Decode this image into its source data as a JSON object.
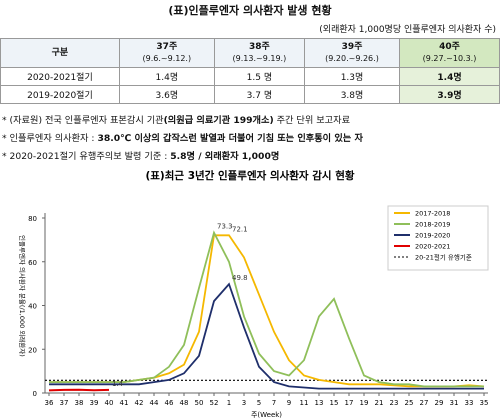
{
  "title": "(표)인플루엔자 의사환자 발생 현황",
  "unit_note": "(외래환자 1,000명당 인플루엔자 의사환자 수)",
  "table": {
    "corner": "구분",
    "header": [
      {
        "week": "37주",
        "range": "(9.6.~9.12.)"
      },
      {
        "week": "38주",
        "range": "(9.13.~9.19.)"
      },
      {
        "week": "39주",
        "range": "(9.20.~9.26.)"
      },
      {
        "week": "40주",
        "range": "(9.27.~10.3.)"
      }
    ],
    "rows": [
      [
        "2020-2021절기",
        "1.4명",
        "1.5 명",
        "1.3명",
        "1.4명"
      ],
      [
        "2019-2020절기",
        "3.6명",
        "3.7 명",
        "3.8명",
        "3.9명"
      ]
    ]
  },
  "notes": [
    [
      "* (자료원) 전국 인플루엔자 표본감시 기관",
      "(의원급 의료기관 199개소)",
      " 주간 단위 보고자료"
    ],
    [
      "* 인플루엔자 의사환자 : ",
      "38.0℃ 이상의 갑작스런 발열과 더불어 기침 또는 인후통이 있는 자"
    ],
    [
      "* 2020-2021절기 유행주의보 발령 기준 : ",
      "5.8명 / 외래환자 1,000명"
    ]
  ],
  "chart": {
    "type": "line",
    "title": "(표)최근 3년간 인플루엔자 의사환자 감시 현황",
    "y_label": "인플루엔자 의사환자 분율(/1,000 외래환자)",
    "x_label": "주(Week)",
    "categories": [
      36,
      37,
      38,
      39,
      40,
      41,
      42,
      44,
      46,
      48,
      50,
      52,
      1,
      3,
      5,
      7,
      9,
      11,
      13,
      15,
      17,
      19,
      21,
      23,
      25,
      27,
      29,
      31,
      33,
      35
    ],
    "ylim": [
      0,
      80
    ],
    "yticks": [
      0,
      20,
      40,
      60,
      80
    ],
    "series": [
      {
        "name": "2017-2018",
        "color": "#f5b800",
        "values": [
          5,
          5,
          5,
          5,
          5,
          5,
          6,
          7,
          9,
          13,
          28,
          72.1,
          72.1,
          62,
          45,
          28,
          15,
          8,
          6,
          5,
          4,
          4,
          4,
          3.5,
          3,
          3,
          3,
          3,
          3.5,
          3
        ],
        "value_labels": [
          null,
          null,
          null,
          null,
          null,
          null,
          null,
          null,
          null,
          null,
          null,
          null,
          "72.1",
          null,
          null,
          null,
          null,
          null,
          null,
          null,
          null,
          null,
          null,
          null,
          null,
          null,
          null,
          null,
          null,
          null
        ]
      },
      {
        "name": "2018-2019",
        "color": "#8fbf5a",
        "values": [
          5,
          5,
          5,
          5,
          5,
          5,
          6,
          7,
          12,
          22,
          48,
          73.3,
          60,
          35,
          18,
          10,
          8,
          15,
          35,
          43,
          25,
          8,
          5,
          4,
          4,
          3,
          3,
          3,
          3,
          3
        ],
        "value_labels": [
          null,
          null,
          null,
          null,
          null,
          null,
          null,
          null,
          null,
          null,
          null,
          "73.3",
          null,
          null,
          null,
          null,
          null,
          null,
          null,
          null,
          null,
          null,
          null,
          null,
          null,
          null,
          null,
          null,
          null,
          null
        ]
      },
      {
        "name": "2019-2020",
        "color": "#1f2f6b",
        "values": [
          4,
          4,
          4,
          4,
          4,
          4,
          4,
          5,
          6,
          9,
          17,
          42,
          49.8,
          30,
          12,
          5,
          3,
          2.5,
          2,
          2,
          2,
          2,
          2,
          2,
          2,
          2,
          2,
          2,
          2,
          2
        ],
        "value_labels": [
          null,
          null,
          null,
          null,
          null,
          null,
          null,
          null,
          null,
          null,
          null,
          null,
          "49.8",
          null,
          null,
          null,
          null,
          null,
          null,
          null,
          null,
          null,
          null,
          null,
          null,
          null,
          null,
          null,
          null,
          null
        ]
      },
      {
        "name": "2020-2021",
        "color": "#e00000",
        "values": [
          1.2,
          1.4,
          1.5,
          1.3,
          1.4,
          null,
          null,
          null,
          null,
          null,
          null,
          null,
          null,
          null,
          null,
          null,
          null,
          null,
          null,
          null,
          null,
          null,
          null,
          null,
          null,
          null,
          null,
          null,
          null,
          null
        ],
        "value_labels": [
          null,
          null,
          null,
          null,
          "1.4",
          null,
          null,
          null,
          null,
          null,
          null,
          null,
          null,
          null,
          null,
          null,
          null,
          null,
          null,
          null,
          null,
          null,
          null,
          null,
          null,
          null,
          null,
          null,
          null,
          null
        ]
      }
    ],
    "threshold": {
      "name": "20-21절기 유행기준",
      "value": 5.8,
      "color": "#000000"
    }
  }
}
